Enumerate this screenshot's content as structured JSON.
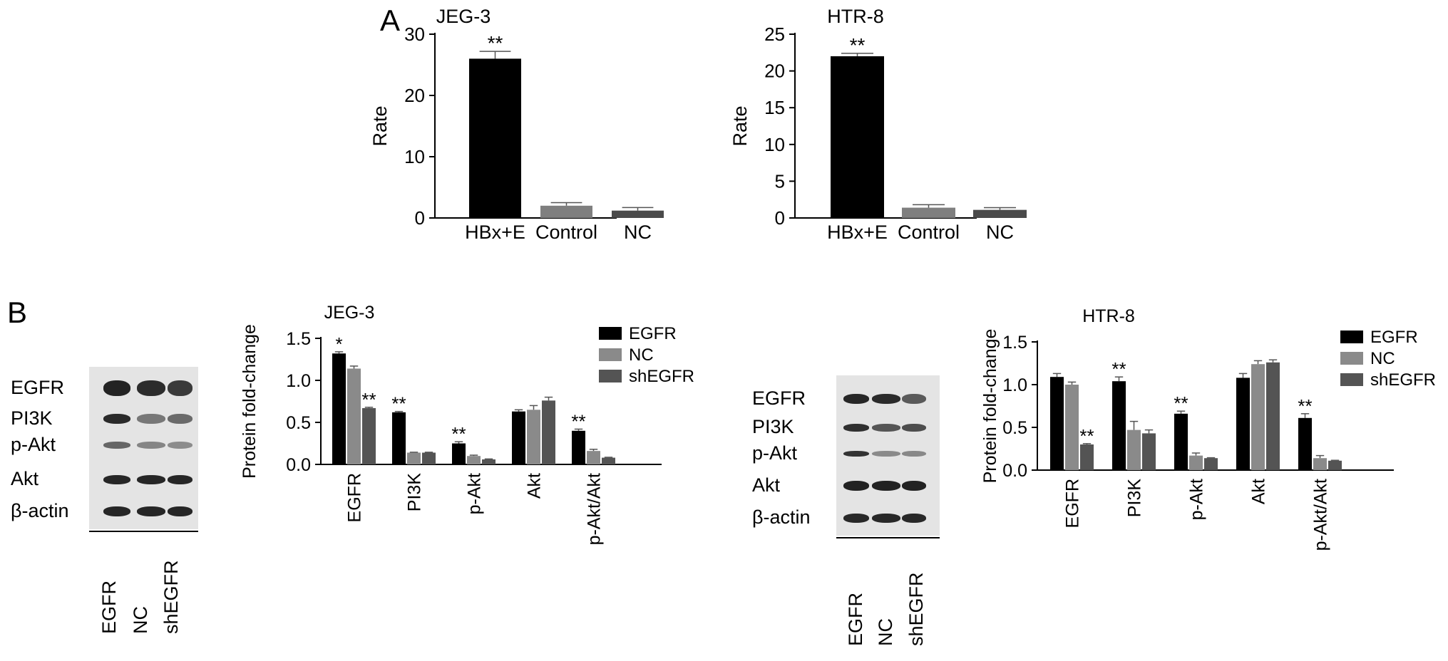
{
  "panels": {
    "a": "A",
    "b": "B"
  },
  "charts": [
    {
      "type": "bar",
      "title": "JEG-3",
      "ylabel": "Rate",
      "ylim": [
        0,
        30
      ],
      "yticks": [
        0,
        10,
        20,
        30
      ],
      "categories": [
        "HBx+E",
        "Control",
        "NC"
      ],
      "values": [
        26,
        2,
        1.2
      ],
      "errors": [
        1.2,
        0.5,
        0.5
      ],
      "colors": [
        "#000000",
        "#7f7f7f",
        "#4a4a4a"
      ],
      "sig": [
        "**",
        "",
        ""
      ]
    },
    {
      "type": "bar",
      "title": "HTR-8",
      "ylabel": "Rate",
      "ylim": [
        0,
        25
      ],
      "yticks": [
        0,
        5,
        10,
        15,
        20,
        25
      ],
      "categories": [
        "HBx+E",
        "Control",
        "NC"
      ],
      "values": [
        22,
        1.4,
        1.1
      ],
      "errors": [
        0.4,
        0.4,
        0.3
      ],
      "colors": [
        "#000000",
        "#7f7f7f",
        "#4a4a4a"
      ],
      "sig": [
        "**",
        "",
        ""
      ]
    },
    {
      "type": "bar",
      "title": "JEG-3",
      "ylabel": "Protein fold-change",
      "ylim": [
        0,
        1.5
      ],
      "yticks": [
        "0.0",
        "0.5",
        "1.0",
        "1.5"
      ],
      "categories": [
        "EGFR",
        "PI3K",
        "p-Akt",
        "Akt",
        "p-Akt/Akt"
      ],
      "series": [
        {
          "name": "EGFR",
          "color": "#000000",
          "values": [
            1.32,
            0.62,
            0.25,
            0.63,
            0.4
          ],
          "errors": [
            0.02,
            0.01,
            0.02,
            0.02,
            0.02
          ],
          "sig": [
            "*",
            "**",
            "**",
            "",
            "**"
          ]
        },
        {
          "name": "NC",
          "color": "#8a8a8a",
          "values": [
            1.14,
            0.14,
            0.1,
            0.65,
            0.16
          ],
          "errors": [
            0.03,
            0.005,
            0.01,
            0.05,
            0.02
          ],
          "sig": [
            "",
            "",
            "",
            "",
            ""
          ]
        },
        {
          "name": "shEGFR",
          "color": "#545454",
          "values": [
            0.67,
            0.14,
            0.06,
            0.76,
            0.08
          ],
          "errors": [
            0.01,
            0.005,
            0.005,
            0.04,
            0.005
          ],
          "sig": [
            "**",
            "",
            "",
            "",
            ""
          ]
        }
      ]
    },
    {
      "type": "bar",
      "title": "HTR-8",
      "ylabel": "Protein fold-change",
      "ylim": [
        0,
        1.5
      ],
      "yticks": [
        "0.0",
        "0.5",
        "1.0",
        "1.5"
      ],
      "categories": [
        "EGFR",
        "PI3K",
        "p-Akt",
        "Akt",
        "p-Akt/Akt"
      ],
      "series": [
        {
          "name": "EGFR",
          "color": "#000000",
          "values": [
            1.09,
            1.04,
            0.66,
            1.08,
            0.61
          ],
          "errors": [
            0.04,
            0.05,
            0.03,
            0.05,
            0.05
          ],
          "sig": [
            "",
            "**",
            "**",
            "",
            "**"
          ]
        },
        {
          "name": "NC",
          "color": "#8a8a8a",
          "values": [
            1.0,
            0.47,
            0.17,
            1.24,
            0.14
          ],
          "errors": [
            0.03,
            0.1,
            0.03,
            0.04,
            0.03
          ],
          "sig": [
            "",
            "",
            "",
            "",
            ""
          ]
        },
        {
          "name": "shEGFR",
          "color": "#545454",
          "values": [
            0.3,
            0.43,
            0.14,
            1.26,
            0.11
          ],
          "errors": [
            0.01,
            0.04,
            0.005,
            0.03,
            0.005
          ],
          "sig": [
            "**",
            "",
            "",
            "",
            ""
          ]
        }
      ]
    }
  ],
  "blots": [
    {
      "rows": [
        "EGFR",
        "PI3K",
        "p-Akt",
        "Akt",
        "β-actin"
      ],
      "lanes": [
        "EGFR",
        "NC",
        "shEGFR"
      ],
      "bands": [
        [
          "#232323",
          "#2c2c2c",
          "#3a3a3a"
        ],
        [
          "#2a2a2a",
          "#777777",
          "#6a6a6a"
        ],
        [
          "#666666",
          "#858585",
          "#8c8c8c"
        ],
        [
          "#262626",
          "#262626",
          "#262626"
        ],
        [
          "#262626",
          "#262626",
          "#262626"
        ]
      ]
    },
    {
      "rows": [
        "EGFR",
        "PI3K",
        "p-Akt",
        "Akt",
        "β-actin"
      ],
      "lanes": [
        "EGFR",
        "NC",
        "shEGFR"
      ],
      "bands": [
        [
          "#272727",
          "#2b2b2b",
          "#5a5a5a"
        ],
        [
          "#303030",
          "#555555",
          "#4d4d4d"
        ],
        [
          "#333333",
          "#8a8a8a",
          "#888888"
        ],
        [
          "#222222",
          "#222222",
          "#222222"
        ],
        [
          "#282828",
          "#282828",
          "#282828"
        ]
      ]
    }
  ]
}
